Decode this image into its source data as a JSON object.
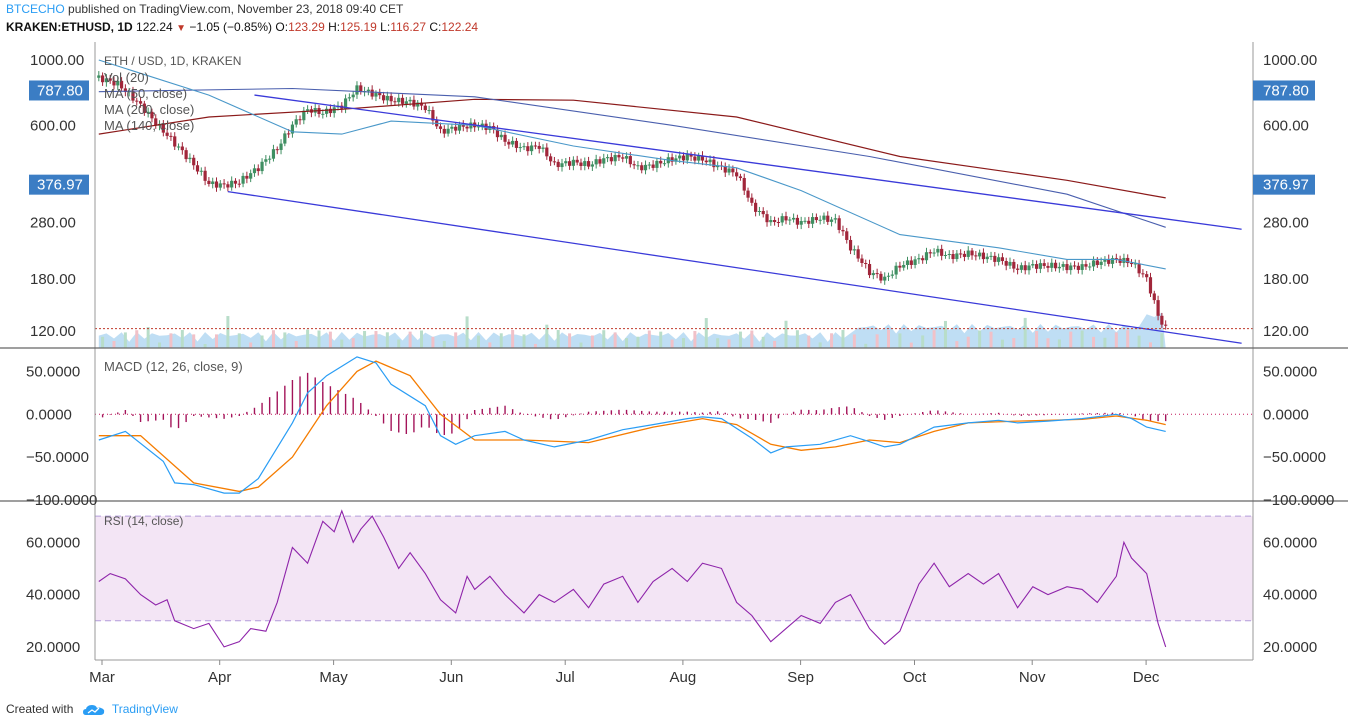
{
  "header": {
    "publisher": "BTCECHO",
    "published_text": "published on TradingView.com, November 23, 2018 09:40 CET",
    "symbol": "KRAKEN:ETHUSD, 1D",
    "last": "122.24",
    "change": "−1.05 (−0.85%)",
    "o_label": "O:",
    "o_val": "123.29",
    "h_label": "H:",
    "h_val": "125.19",
    "l_label": "L:",
    "l_val": "116.27",
    "c_label": "C:",
    "c_val": "122.24"
  },
  "footer": {
    "created_with": "Created with",
    "brand": "TradingView"
  },
  "colors": {
    "up": "#3f8f62",
    "down": "#a1263a",
    "ma50": "#4a98c9",
    "ma200": "#8b1a1a",
    "ma140": "#4a5fae",
    "trend": "#3a3ad9",
    "macd": "#2a9df4",
    "signal": "#f57c00",
    "hist": "#a3145a",
    "rsi": "#8e24aa",
    "rsi_band": "#f3e5f5",
    "volume": "#a9d3f0",
    "price_tag": "#3b7dc4",
    "last_line": "#c0392b"
  },
  "chart_data": [
    {
      "type": "candlestick",
      "title": "ETH / USD, 1D, KRAKEN",
      "legend": [
        "Vol (20)",
        "MA (50, close)",
        "MA (200, close)",
        "MA (140, close)"
      ],
      "scale": "log",
      "ylim": [
        105,
        1000
      ],
      "yticks": [
        "1000.00",
        "600.00",
        "280.00",
        "180.00",
        "120.00"
      ],
      "price_tags": [
        "787.80",
        "376.97"
      ],
      "last_price": 122.24,
      "x_labels": [
        "Mar",
        "Apr",
        "May",
        "Jun",
        "Jul",
        "Aug",
        "Sep",
        "Oct",
        "Nov",
        "Dec"
      ],
      "close_series": [
        {
          "day": 1,
          "close": 870
        },
        {
          "day": 6,
          "close": 830
        },
        {
          "day": 12,
          "close": 700
        },
        {
          "day": 16,
          "close": 610
        },
        {
          "day": 21,
          "close": 520
        },
        {
          "day": 26,
          "close": 440
        },
        {
          "day": 30,
          "close": 380
        },
        {
          "day": 34,
          "close": 375
        },
        {
          "day": 38,
          "close": 385
        },
        {
          "day": 43,
          "close": 430
        },
        {
          "day": 48,
          "close": 500
        },
        {
          "day": 52,
          "close": 600
        },
        {
          "day": 56,
          "close": 680
        },
        {
          "day": 60,
          "close": 660
        },
        {
          "day": 65,
          "close": 700
        },
        {
          "day": 69,
          "close": 800
        },
        {
          "day": 73,
          "close": 770
        },
        {
          "day": 78,
          "close": 730
        },
        {
          "day": 83,
          "close": 720
        },
        {
          "day": 87,
          "close": 690
        },
        {
          "day": 91,
          "close": 570
        },
        {
          "day": 95,
          "close": 590
        },
        {
          "day": 100,
          "close": 600
        },
        {
          "day": 104,
          "close": 590
        },
        {
          "day": 108,
          "close": 530
        },
        {
          "day": 113,
          "close": 500
        },
        {
          "day": 117,
          "close": 510
        },
        {
          "day": 121,
          "close": 440
        },
        {
          "day": 126,
          "close": 450
        },
        {
          "day": 130,
          "close": 440
        },
        {
          "day": 134,
          "close": 460
        },
        {
          "day": 139,
          "close": 470
        },
        {
          "day": 143,
          "close": 430
        },
        {
          "day": 147,
          "close": 440
        },
        {
          "day": 152,
          "close": 460
        },
        {
          "day": 156,
          "close": 470
        },
        {
          "day": 160,
          "close": 460
        },
        {
          "day": 165,
          "close": 430
        },
        {
          "day": 169,
          "close": 410
        },
        {
          "day": 173,
          "close": 320
        },
        {
          "day": 178,
          "close": 280
        },
        {
          "day": 182,
          "close": 290
        },
        {
          "day": 186,
          "close": 280
        },
        {
          "day": 191,
          "close": 290
        },
        {
          "day": 195,
          "close": 285
        },
        {
          "day": 199,
          "close": 230
        },
        {
          "day": 204,
          "close": 190
        },
        {
          "day": 208,
          "close": 180
        },
        {
          "day": 212,
          "close": 200
        },
        {
          "day": 217,
          "close": 210
        },
        {
          "day": 221,
          "close": 225
        },
        {
          "day": 225,
          "close": 215
        },
        {
          "day": 230,
          "close": 220
        },
        {
          "day": 234,
          "close": 215
        },
        {
          "day": 238,
          "close": 210
        },
        {
          "day": 243,
          "close": 195
        },
        {
          "day": 247,
          "close": 200
        },
        {
          "day": 251,
          "close": 200
        },
        {
          "day": 256,
          "close": 198
        },
        {
          "day": 260,
          "close": 198
        },
        {
          "day": 264,
          "close": 205
        },
        {
          "day": 269,
          "close": 210
        },
        {
          "day": 273,
          "close": 205
        },
        {
          "day": 277,
          "close": 180
        },
        {
          "day": 280,
          "close": 135
        },
        {
          "day": 282,
          "close": 122
        }
      ],
      "ma50": [
        {
          "day": 1,
          "value": 1000
        },
        {
          "day": 30,
          "value": 760
        },
        {
          "day": 52,
          "value": 570
        },
        {
          "day": 65,
          "value": 560
        },
        {
          "day": 78,
          "value": 620
        },
        {
          "day": 100,
          "value": 600
        },
        {
          "day": 126,
          "value": 510
        },
        {
          "day": 152,
          "value": 455
        },
        {
          "day": 169,
          "value": 430
        },
        {
          "day": 186,
          "value": 360
        },
        {
          "day": 212,
          "value": 255
        },
        {
          "day": 238,
          "value": 230
        },
        {
          "day": 256,
          "value": 210
        },
        {
          "day": 269,
          "value": 210
        },
        {
          "day": 282,
          "value": 195
        }
      ],
      "ma200": [
        {
          "day": 1,
          "value": 560
        },
        {
          "day": 30,
          "value": 640
        },
        {
          "day": 65,
          "value": 680
        },
        {
          "day": 100,
          "value": 735
        },
        {
          "day": 126,
          "value": 730
        },
        {
          "day": 169,
          "value": 640
        },
        {
          "day": 212,
          "value": 470
        },
        {
          "day": 256,
          "value": 390
        },
        {
          "day": 282,
          "value": 340
        }
      ],
      "ma140": [
        {
          "day": 1,
          "value": 780
        },
        {
          "day": 52,
          "value": 800
        },
        {
          "day": 100,
          "value": 750
        },
        {
          "day": 152,
          "value": 600
        },
        {
          "day": 204,
          "value": 470
        },
        {
          "day": 256,
          "value": 350
        },
        {
          "day": 282,
          "value": 270
        }
      ],
      "trendlines": [
        {
          "from": {
            "day": 42,
            "value": 760
          },
          "to": {
            "day": 302,
            "value": 266
          }
        },
        {
          "from": {
            "day": 35,
            "value": 357
          },
          "to": {
            "day": 302,
            "value": 109
          }
        }
      ]
    },
    {
      "type": "macd",
      "title": "MACD (12, 26, close, 9)",
      "ylim": [
        -100,
        75
      ],
      "yticks": [
        "50.0000",
        "0.0000",
        "−50.0000",
        "−100.0000"
      ],
      "macd": [
        {
          "day": 1,
          "value": -30
        },
        {
          "day": 8,
          "value": -20
        },
        {
          "day": 18,
          "value": -55
        },
        {
          "day": 21,
          "value": -80
        },
        {
          "day": 26,
          "value": -82
        },
        {
          "day": 34,
          "value": -92
        },
        {
          "day": 38,
          "value": -92
        },
        {
          "day": 43,
          "value": -75
        },
        {
          "day": 52,
          "value": -10
        },
        {
          "day": 56,
          "value": 25
        },
        {
          "day": 61,
          "value": 45
        },
        {
          "day": 69,
          "value": 67
        },
        {
          "day": 74,
          "value": 60
        },
        {
          "day": 78,
          "value": 35
        },
        {
          "day": 87,
          "value": 10
        },
        {
          "day": 91,
          "value": -25
        },
        {
          "day": 95,
          "value": -35
        },
        {
          "day": 100,
          "value": -25
        },
        {
          "day": 108,
          "value": -20
        },
        {
          "day": 113,
          "value": -30
        },
        {
          "day": 121,
          "value": -38
        },
        {
          "day": 130,
          "value": -30
        },
        {
          "day": 139,
          "value": -18
        },
        {
          "day": 147,
          "value": -12
        },
        {
          "day": 156,
          "value": -5
        },
        {
          "day": 160,
          "value": -3
        },
        {
          "day": 165,
          "value": -5
        },
        {
          "day": 173,
          "value": -28
        },
        {
          "day": 178,
          "value": -45
        },
        {
          "day": 182,
          "value": -38
        },
        {
          "day": 191,
          "value": -35
        },
        {
          "day": 199,
          "value": -25
        },
        {
          "day": 204,
          "value": -32
        },
        {
          "day": 208,
          "value": -38
        },
        {
          "day": 212,
          "value": -35
        },
        {
          "day": 221,
          "value": -15
        },
        {
          "day": 230,
          "value": -10
        },
        {
          "day": 238,
          "value": -7
        },
        {
          "day": 243,
          "value": -10
        },
        {
          "day": 251,
          "value": -8
        },
        {
          "day": 260,
          "value": -5
        },
        {
          "day": 269,
          "value": 0
        },
        {
          "day": 273,
          "value": -5
        },
        {
          "day": 277,
          "value": -15
        },
        {
          "day": 282,
          "value": -20
        }
      ],
      "signal": [
        {
          "day": 1,
          "value": -25
        },
        {
          "day": 12,
          "value": -25
        },
        {
          "day": 26,
          "value": -80
        },
        {
          "day": 38,
          "value": -90
        },
        {
          "day": 43,
          "value": -85
        },
        {
          "day": 52,
          "value": -50
        },
        {
          "day": 61,
          "value": 10
        },
        {
          "day": 69,
          "value": 50
        },
        {
          "day": 74,
          "value": 62
        },
        {
          "day": 83,
          "value": 45
        },
        {
          "day": 91,
          "value": 0
        },
        {
          "day": 100,
          "value": -30
        },
        {
          "day": 113,
          "value": -30
        },
        {
          "day": 130,
          "value": -33
        },
        {
          "day": 147,
          "value": -15
        },
        {
          "day": 160,
          "value": -5
        },
        {
          "day": 169,
          "value": -12
        },
        {
          "day": 178,
          "value": -35
        },
        {
          "day": 186,
          "value": -42
        },
        {
          "day": 195,
          "value": -38
        },
        {
          "day": 204,
          "value": -30
        },
        {
          "day": 212,
          "value": -33
        },
        {
          "day": 221,
          "value": -20
        },
        {
          "day": 230,
          "value": -10
        },
        {
          "day": 243,
          "value": -8
        },
        {
          "day": 260,
          "value": -6
        },
        {
          "day": 269,
          "value": -2
        },
        {
          "day": 277,
          "value": -7
        },
        {
          "day": 282,
          "value": -12
        }
      ]
    },
    {
      "type": "line",
      "title": "RSI (14, close)",
      "ylim": [
        15,
        75
      ],
      "yticks": [
        "60.0000",
        "40.0000",
        "20.0000"
      ],
      "bands": [
        70,
        30
      ],
      "values": [
        {
          "day": 1,
          "value": 45
        },
        {
          "day": 4,
          "value": 48
        },
        {
          "day": 8,
          "value": 46
        },
        {
          "day": 12,
          "value": 40
        },
        {
          "day": 16,
          "value": 36
        },
        {
          "day": 19,
          "value": 38
        },
        {
          "day": 21,
          "value": 30
        },
        {
          "day": 26,
          "value": 27
        },
        {
          "day": 30,
          "value": 29
        },
        {
          "day": 34,
          "value": 20
        },
        {
          "day": 38,
          "value": 22
        },
        {
          "day": 41,
          "value": 27
        },
        {
          "day": 45,
          "value": 26
        },
        {
          "day": 48,
          "value": 37
        },
        {
          "day": 52,
          "value": 58
        },
        {
          "day": 56,
          "value": 52
        },
        {
          "day": 60,
          "value": 68
        },
        {
          "day": 63,
          "value": 64
        },
        {
          "day": 65,
          "value": 72
        },
        {
          "day": 68,
          "value": 60
        },
        {
          "day": 70,
          "value": 65
        },
        {
          "day": 73,
          "value": 70
        },
        {
          "day": 76,
          "value": 62
        },
        {
          "day": 80,
          "value": 50
        },
        {
          "day": 83,
          "value": 56
        },
        {
          "day": 87,
          "value": 48
        },
        {
          "day": 91,
          "value": 38
        },
        {
          "day": 95,
          "value": 33
        },
        {
          "day": 98,
          "value": 47
        },
        {
          "day": 100,
          "value": 42
        },
        {
          "day": 104,
          "value": 47
        },
        {
          "day": 108,
          "value": 40
        },
        {
          "day": 113,
          "value": 33
        },
        {
          "day": 117,
          "value": 40
        },
        {
          "day": 121,
          "value": 37
        },
        {
          "day": 126,
          "value": 42
        },
        {
          "day": 130,
          "value": 35
        },
        {
          "day": 134,
          "value": 44
        },
        {
          "day": 139,
          "value": 47
        },
        {
          "day": 143,
          "value": 37
        },
        {
          "day": 147,
          "value": 45
        },
        {
          "day": 152,
          "value": 50
        },
        {
          "day": 156,
          "value": 45
        },
        {
          "day": 160,
          "value": 52
        },
        {
          "day": 165,
          "value": 50
        },
        {
          "day": 169,
          "value": 37
        },
        {
          "day": 173,
          "value": 32
        },
        {
          "day": 178,
          "value": 22
        },
        {
          "day": 182,
          "value": 27
        },
        {
          "day": 186,
          "value": 32
        },
        {
          "day": 191,
          "value": 29
        },
        {
          "day": 195,
          "value": 37
        },
        {
          "day": 199,
          "value": 40
        },
        {
          "day": 204,
          "value": 27
        },
        {
          "day": 208,
          "value": 21
        },
        {
          "day": 212,
          "value": 26
        },
        {
          "day": 217,
          "value": 44
        },
        {
          "day": 221,
          "value": 52
        },
        {
          "day": 225,
          "value": 43
        },
        {
          "day": 230,
          "value": 48
        },
        {
          "day": 234,
          "value": 44
        },
        {
          "day": 238,
          "value": 48
        },
        {
          "day": 243,
          "value": 35
        },
        {
          "day": 247,
          "value": 43
        },
        {
          "day": 251,
          "value": 40
        },
        {
          "day": 256,
          "value": 43
        },
        {
          "day": 260,
          "value": 42
        },
        {
          "day": 264,
          "value": 37
        },
        {
          "day": 269,
          "value": 47
        },
        {
          "day": 271,
          "value": 60
        },
        {
          "day": 273,
          "value": 54
        },
        {
          "day": 277,
          "value": 48
        },
        {
          "day": 280,
          "value": 29
        },
        {
          "day": 282,
          "value": 20
        }
      ]
    }
  ]
}
